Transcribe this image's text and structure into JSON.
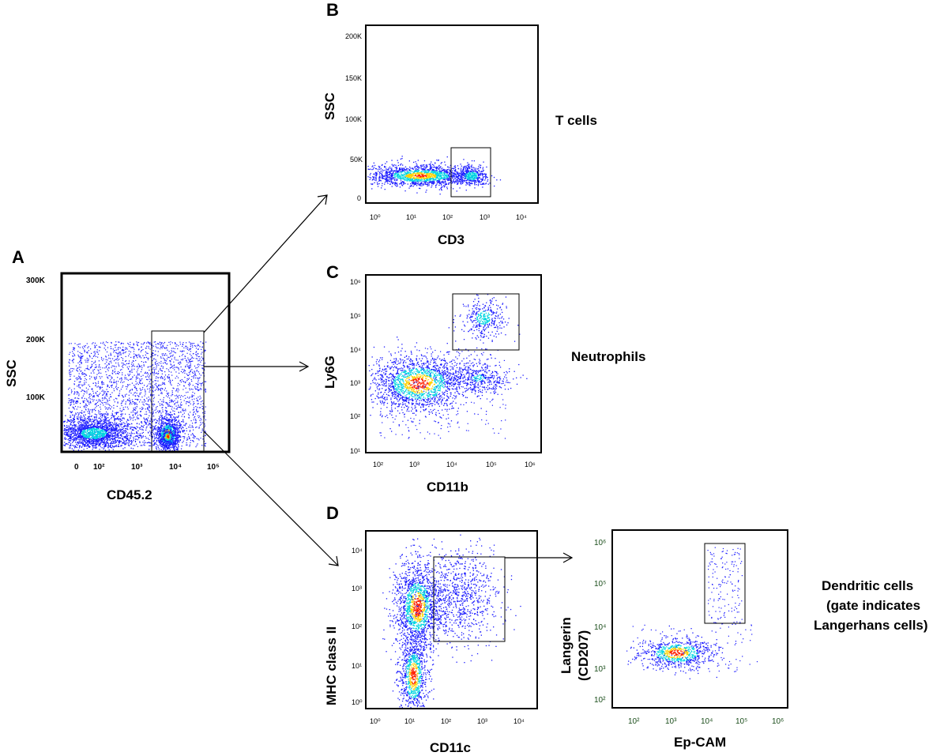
{
  "figure": {
    "panels": [
      {
        "id": "A",
        "label": "A",
        "xlabel": "CD45.2",
        "ylabel": "SSC",
        "xticks": [
          "0",
          "10²",
          "10³",
          "10⁴",
          "10⁵"
        ],
        "yticks": [
          "100K",
          "200K",
          "300K"
        ]
      },
      {
        "id": "B",
        "label": "B",
        "xlabel": "CD3",
        "ylabel": "SSC",
        "xticks": [
          "10⁰",
          "10¹",
          "10²",
          "10³",
          "10⁴"
        ],
        "yticks": [
          "0",
          "50K",
          "100K",
          "150K",
          "200K"
        ],
        "description": "T  cells"
      },
      {
        "id": "C",
        "label": "C",
        "xlabel": "CD11b",
        "ylabel": "Ly6G",
        "xticks": [
          "10²",
          "10³",
          "10⁴",
          "10⁵",
          "10⁶"
        ],
        "yticks": [
          "10¹",
          "10²",
          "10³",
          "10⁴",
          "10⁵",
          "10⁶"
        ],
        "description": "Neutrophils"
      },
      {
        "id": "D",
        "label": "D",
        "xlabel": "CD11c",
        "ylabel": "MHC class II",
        "xticks": [
          "10⁰",
          "10¹",
          "10²",
          "10³",
          "10⁴"
        ],
        "yticks": [
          "10⁰",
          "10¹",
          "10²",
          "10³",
          "10⁴"
        ]
      },
      {
        "id": "E",
        "label": "",
        "xlabel": "Ep-CAM",
        "ylabel": "Langerin",
        "ylabel2": "(CD207)",
        "xticks": [
          "10²",
          "10³",
          "10⁴",
          "10⁵",
          "10⁶"
        ],
        "yticks": [
          "10²",
          "10³",
          "10⁴",
          "10⁵",
          "10⁶"
        ],
        "description_lines": [
          "Dendritic cells",
          "(gate indicates",
          "Langerhans   cells)"
        ]
      }
    ],
    "colors": {
      "low_density": "#1a1aff",
      "mid_density": "#00d5e0",
      "high_density": "#ffd000",
      "peak_density": "#ff2000"
    }
  }
}
